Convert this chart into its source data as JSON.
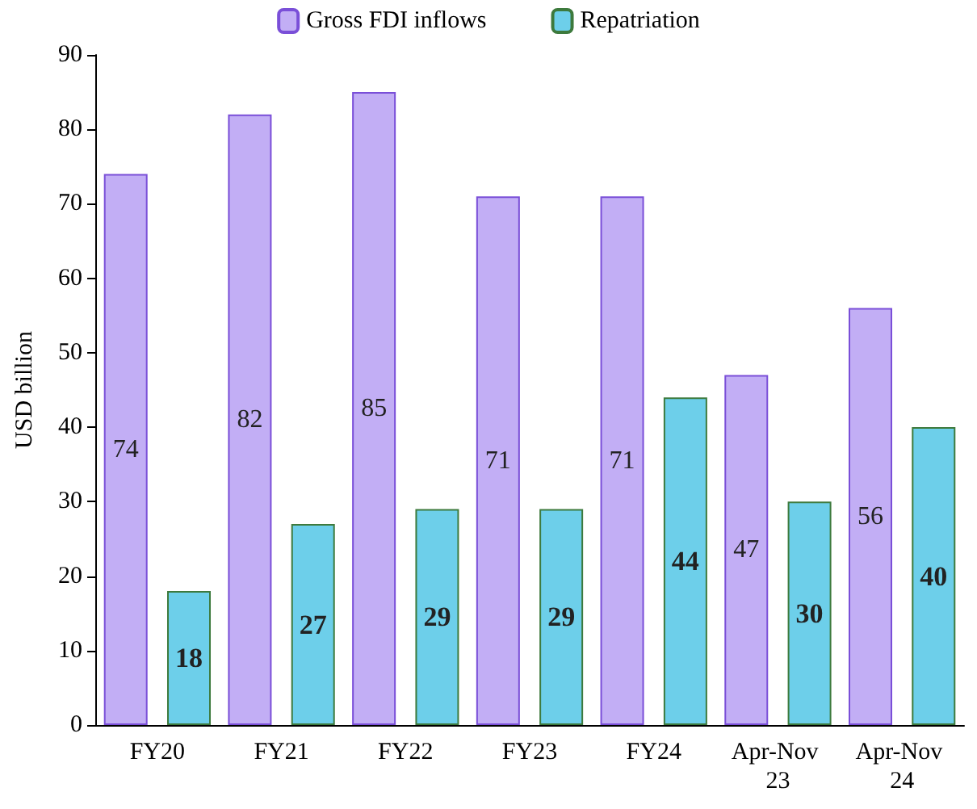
{
  "chart_data": {
    "type": "bar",
    "ylabel": "USD billion",
    "categories": [
      "FY20",
      "FY21",
      "FY22",
      "FY23",
      "FY24",
      "Apr-Nov 23",
      "Apr-Nov 24"
    ],
    "series": [
      {
        "name": "Gross FDI inflows",
        "color": "#c2aef5",
        "values": [
          74,
          82,
          85,
          71,
          71,
          47,
          56
        ]
      },
      {
        "name": "Repatriation",
        "color": "#6dcfea",
        "values": [
          18,
          27,
          29,
          29,
          44,
          30,
          40
        ]
      }
    ],
    "ylim": [
      0,
      90
    ],
    "yticks": [
      0,
      10,
      20,
      30,
      40,
      50,
      60,
      70,
      80,
      90
    ],
    "grid": false,
    "legend": "top",
    "data_labels": true
  }
}
